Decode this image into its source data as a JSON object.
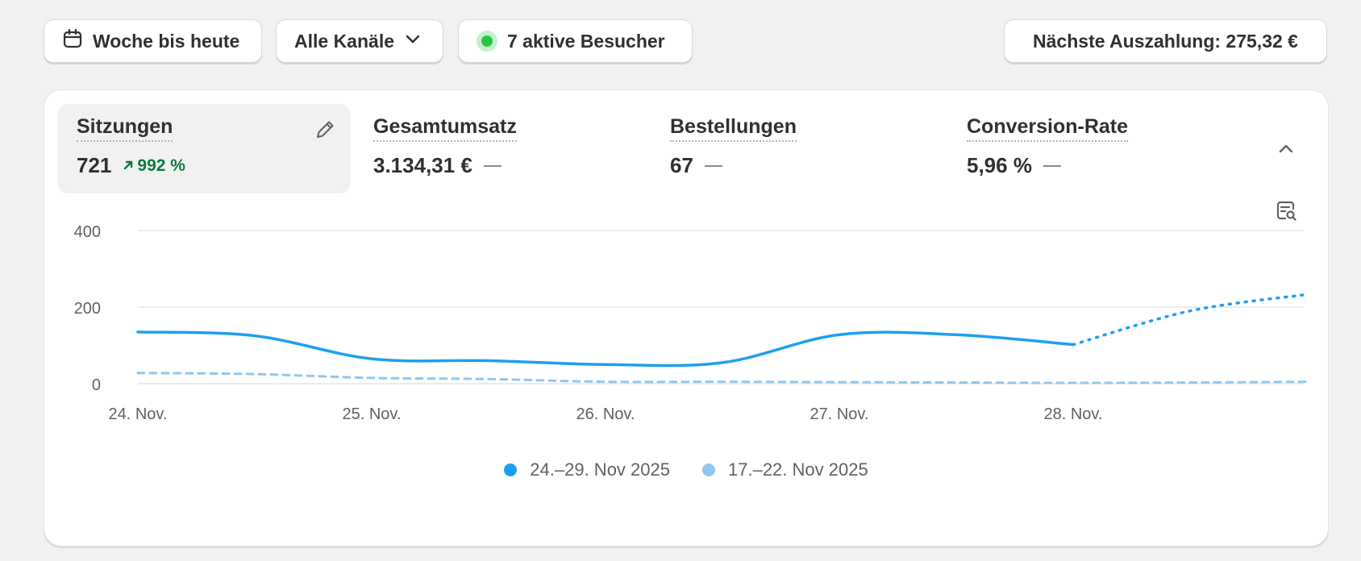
{
  "toolbar": {
    "date_range_label": "Woche bis heute",
    "channel_label": "Alle Kanäle",
    "live_visitors_label": "7 aktive Besucher",
    "payout_label": "Nächste Auszahlung: 275,32 €"
  },
  "metrics": [
    {
      "label": "Sitzungen",
      "value": "721",
      "change": "992 %",
      "selected": true
    },
    {
      "label": "Gesamtumsatz",
      "value": "3.134,31 €",
      "change": null,
      "selected": false
    },
    {
      "label": "Bestellungen",
      "value": "67",
      "change": null,
      "selected": false
    },
    {
      "label": "Conversion-Rate",
      "value": "5,96 %",
      "change": null,
      "selected": false
    }
  ],
  "colors": {
    "current_series": "#1d9ff0",
    "previous_series": "#90c8ef",
    "trend_positive": "#0c7a43",
    "live_dot": "#2cc442"
  },
  "icons": {
    "date": "calendar-icon",
    "channel": "chevron-down-icon",
    "edit": "pencil-icon",
    "collapse": "chevron-up-icon",
    "insight": "magnifier-report-icon",
    "trend": "arrow-up-right-icon"
  },
  "chart_data": {
    "type": "line",
    "title": "",
    "xlabel": "",
    "ylabel": "",
    "ylim": [
      0,
      400
    ],
    "y_ticks": [
      "400",
      "200",
      "0"
    ],
    "y_tick_values": [
      400,
      200,
      0
    ],
    "categories": [
      "24. Nov.",
      "25. Nov.",
      "26. Nov.",
      "27. Nov.",
      "28. Nov."
    ],
    "grid": true,
    "legend_position": "bottom",
    "series": [
      {
        "name": "24.–29. Nov 2025",
        "x": [
          0,
          0.5,
          1,
          1.5,
          2,
          2.5,
          3,
          3.5,
          4,
          4.5,
          5
        ],
        "values": [
          135,
          125,
          65,
          60,
          50,
          55,
          128,
          128,
          102,
          190,
          233
        ],
        "projected_from_index": 8
      },
      {
        "name": "17.–22. Nov 2025",
        "x": [
          0,
          0.5,
          1,
          1.5,
          2,
          2.5,
          3,
          3.5,
          4,
          4.5,
          5
        ],
        "values": [
          28,
          25,
          15,
          12,
          5,
          5,
          4,
          3,
          2,
          3,
          5
        ],
        "dashed": true
      }
    ]
  }
}
